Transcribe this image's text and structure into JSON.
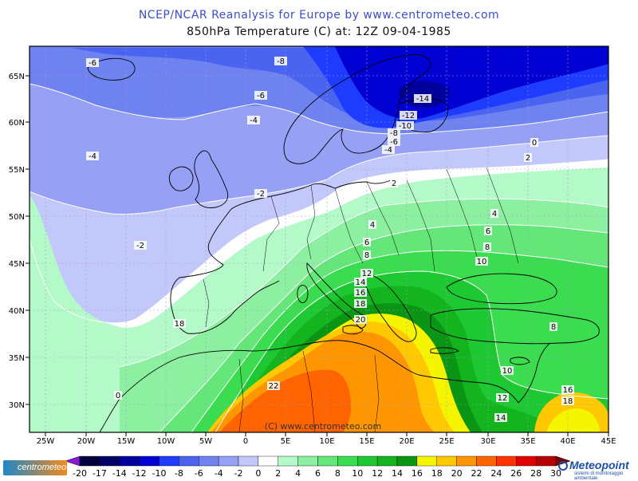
{
  "header": {
    "title": "NCEP/NCAR Reanalysis for Europe by www.centrometeo.com",
    "subtitle": "850hPa Temperature (C) at: 12Z 09-04-1985"
  },
  "map": {
    "type": "filled-contour",
    "field": "850hPa Temperature",
    "lon_range": [
      -28,
      45
    ],
    "lat_range": [
      27,
      68
    ],
    "lon_labels": [
      "25W",
      "20W",
      "15W",
      "10W",
      "5W",
      "0",
      "5E",
      "10E",
      "15E",
      "20E",
      "25E",
      "30E",
      "35E",
      "40E",
      "45E"
    ],
    "lat_labels": [
      "30N",
      "35N",
      "40N",
      "45N",
      "50N",
      "55N",
      "60N",
      "65N"
    ],
    "contour_labels": [
      "-6",
      "-8",
      "-6",
      "-4",
      "-4",
      "-2",
      "-2",
      "-14",
      "-12",
      "-10",
      "-8",
      "-6",
      "-4",
      "0",
      "2",
      "2",
      "4",
      "4",
      "6",
      "6",
      "8",
      "8",
      "10",
      "12",
      "14",
      "16",
      "18",
      "20",
      "22",
      "10",
      "8",
      "10",
      "12",
      "14",
      "16",
      "18",
      "0",
      "2"
    ],
    "watermark": "(C) www.centrometeo.com"
  },
  "legend": {
    "labels": [
      "-20",
      "-17",
      "-14",
      "-12",
      "-10",
      "-8",
      "-6",
      "-4",
      "-2",
      "0",
      "2",
      "4",
      "6",
      "8",
      "10",
      "12",
      "14",
      "16",
      "18",
      "20",
      "22",
      "24",
      "26",
      "28",
      "30"
    ],
    "colors": [
      "#00003e",
      "#000066",
      "#00009c",
      "#0000d2",
      "#1e3cff",
      "#4a64f0",
      "#6e82f0",
      "#96a0f5",
      "#c3c8fa",
      "#ffffff",
      "#b4fac8",
      "#8cf0a0",
      "#64e678",
      "#3cdc50",
      "#1ec832",
      "#14b41e",
      "#0a9614",
      "#f5f500",
      "#ffc800",
      "#ff9600",
      "#ff6400",
      "#ff3200",
      "#e10000",
      "#b40000"
    ],
    "logo_left": "centrometeo",
    "logo_right_name": "Meteopoint",
    "logo_right_sub": "sistemi di monitoraggio ambientale"
  },
  "colors": {
    "title": "#3a4fd0",
    "frame": "#000000",
    "contour": "#ffffff",
    "coast": "#000000"
  }
}
